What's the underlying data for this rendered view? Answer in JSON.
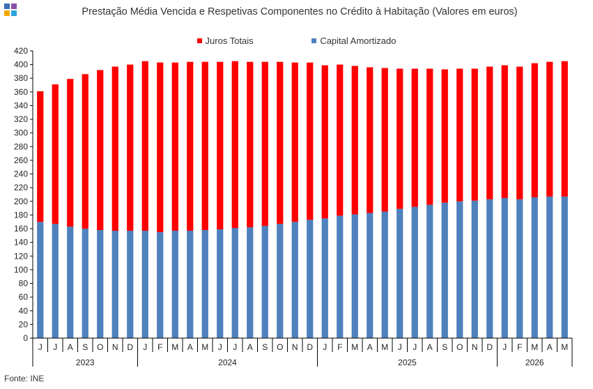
{
  "chart_data": {
    "type": "bar",
    "stacked": true,
    "title": "Prestação Média Vencida e Respetivas Componentes no Crédito à Habitação (Valores em euros)",
    "categories": [
      "J",
      "J",
      "A",
      "S",
      "O",
      "N",
      "D",
      "J",
      "F",
      "M",
      "A",
      "M",
      "J",
      "J",
      "A",
      "S",
      "O",
      "N",
      "D",
      "J",
      "F",
      "M",
      "A",
      "M",
      "J",
      "J",
      "A",
      "S",
      "O",
      "N",
      "D",
      "J",
      "F",
      "M",
      "A",
      "M"
    ],
    "years": [
      {
        "label": "2023",
        "count": 7
      },
      {
        "label": "2024",
        "count": 12
      },
      {
        "label": "2025",
        "count": 12
      },
      {
        "label": "2026",
        "count": 5
      }
    ],
    "series": [
      {
        "name": "Capital Amortizado",
        "color": "#4f81bd",
        "values": [
          170,
          167,
          163,
          160,
          158,
          157,
          157,
          157,
          155,
          157,
          157,
          158,
          159,
          161,
          162,
          164,
          167,
          170,
          173,
          175,
          179,
          181,
          183,
          185,
          189,
          192,
          195,
          198,
          200,
          201,
          203,
          205,
          203,
          206,
          207,
          207
        ]
      },
      {
        "name": "Juros Totais",
        "color": "#ff0000",
        "values": [
          191,
          204,
          216,
          226,
          234,
          240,
          243,
          248,
          248,
          246,
          247,
          246,
          245,
          244,
          242,
          240,
          237,
          233,
          230,
          224,
          221,
          217,
          213,
          210,
          205,
          202,
          199,
          195,
          194,
          193,
          194,
          194,
          194,
          196,
          197,
          198
        ]
      }
    ],
    "ylim": [
      0,
      420
    ],
    "yticks": [
      0,
      20,
      40,
      60,
      80,
      100,
      120,
      140,
      160,
      180,
      200,
      220,
      240,
      260,
      280,
      300,
      320,
      340,
      360,
      380,
      400,
      420
    ],
    "legend_position": "top",
    "grid": false
  },
  "source_text": "Fonte: INE",
  "logo_colors": [
    "#3a6fb5",
    "#8a4fa8",
    "#f2a900",
    "#2ea3d9"
  ]
}
